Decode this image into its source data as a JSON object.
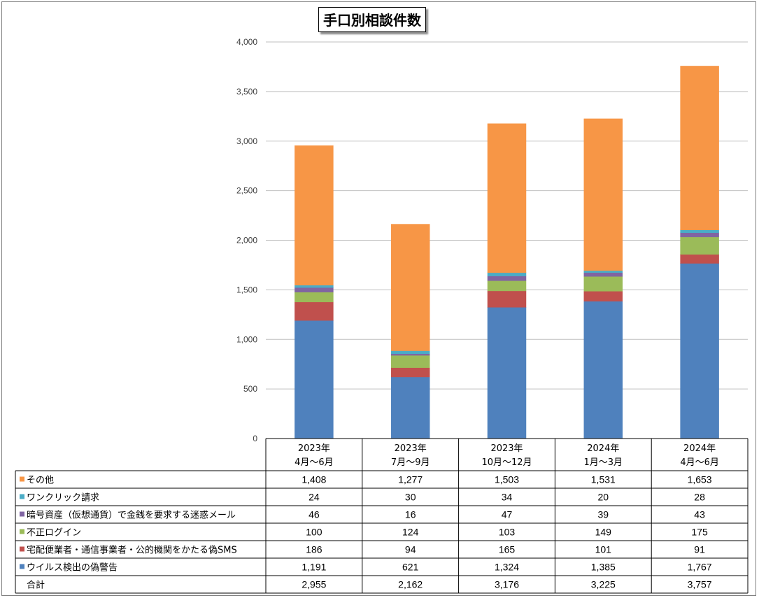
{
  "title": "手口別相談件数",
  "chart_data": {
    "type": "bar",
    "stacked": true,
    "title": "手口別相談件数",
    "categories": [
      [
        "2023年",
        "4月～6月"
      ],
      [
        "2023年",
        "7月～9月"
      ],
      [
        "2023年",
        "10月～12月"
      ],
      [
        "2024年",
        "1月～3月"
      ],
      [
        "2024年",
        "4月～6月"
      ]
    ],
    "ylim": [
      0,
      4000
    ],
    "yticks": [
      "0",
      "500",
      "1,000",
      "1,500",
      "2,000",
      "2,500",
      "3,000",
      "3,500",
      "4,000"
    ],
    "ytick_values": [
      0,
      500,
      1000,
      1500,
      2000,
      2500,
      3000,
      3500,
      4000
    ],
    "grid": true,
    "legend": "data-table",
    "series": [
      {
        "name": "ウイルス検出の偽警告",
        "color": "#4f81bd",
        "values": [
          1191,
          621,
          1324,
          1385,
          1767
        ],
        "labels": [
          "1,191",
          "621",
          "1,324",
          "1,385",
          "1,767"
        ]
      },
      {
        "name": "宅配便業者・通信事業者・公的機関をかたる偽SMS",
        "color": "#c0504d",
        "values": [
          186,
          94,
          165,
          101,
          91
        ],
        "labels": [
          "186",
          "94",
          "165",
          "101",
          "91"
        ]
      },
      {
        "name": "不正ログイン",
        "color": "#9bbb59",
        "values": [
          100,
          124,
          103,
          149,
          175
        ],
        "labels": [
          "100",
          "124",
          "103",
          "149",
          "175"
        ]
      },
      {
        "name": "暗号資産（仮想通貨）で金銭を要求する迷惑メール",
        "color": "#8064a2",
        "values": [
          46,
          16,
          47,
          39,
          43
        ],
        "labels": [
          "46",
          "16",
          "47",
          "39",
          "43"
        ]
      },
      {
        "name": "ワンクリック請求",
        "color": "#4bacc6",
        "values": [
          24,
          30,
          34,
          20,
          28
        ],
        "labels": [
          "24",
          "30",
          "34",
          "20",
          "28"
        ]
      },
      {
        "name": "その他",
        "color": "#f79646",
        "values": [
          1408,
          1277,
          1503,
          1531,
          1653
        ],
        "labels": [
          "1,408",
          "1,277",
          "1,503",
          "1,531",
          "1,653"
        ]
      }
    ],
    "total": {
      "name": "合計",
      "values": [
        2955,
        2162,
        3176,
        3225,
        3757
      ],
      "labels": [
        "2,955",
        "2,162",
        "3,176",
        "3,225",
        "3,757"
      ]
    },
    "table_order": [
      5,
      4,
      3,
      2,
      1,
      0
    ]
  }
}
